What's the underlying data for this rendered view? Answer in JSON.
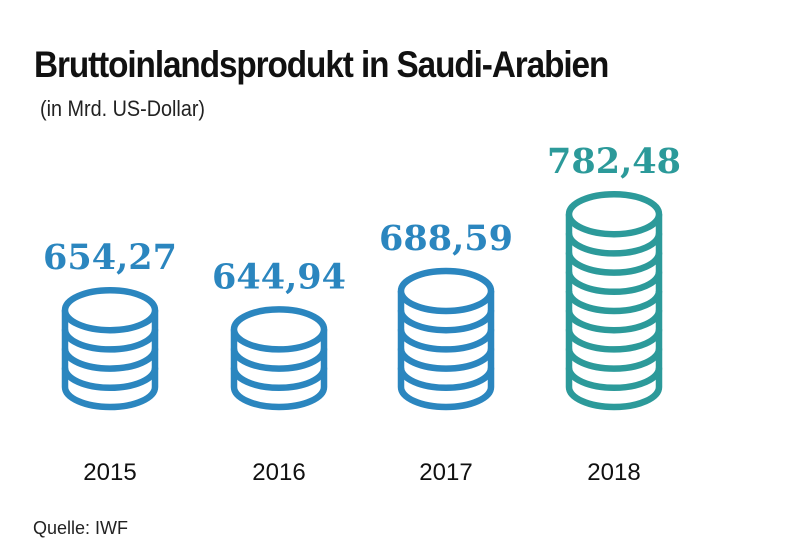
{
  "chart_data": {
    "type": "bar",
    "title": "Bruttoinlandsprodukt in Saudi-Arabien",
    "subtitle": "(in Mrd. US-Dollar)",
    "categories": [
      "2015",
      "2016",
      "2017",
      "2018"
    ],
    "values": [
      654.27,
      644.94,
      688.59,
      782.48
    ],
    "value_labels": [
      "654,27",
      "644,94",
      "688,59",
      "782,48"
    ],
    "coin_counts": [
      4,
      3,
      5,
      9
    ],
    "xlabel": "",
    "ylabel": "",
    "colors": {
      "2015": "#2b86bf",
      "2016": "#2b86bf",
      "2017": "#2b86bf",
      "2018": "#2c9a9a"
    }
  },
  "footer": {
    "source": "Quelle: IWF"
  }
}
